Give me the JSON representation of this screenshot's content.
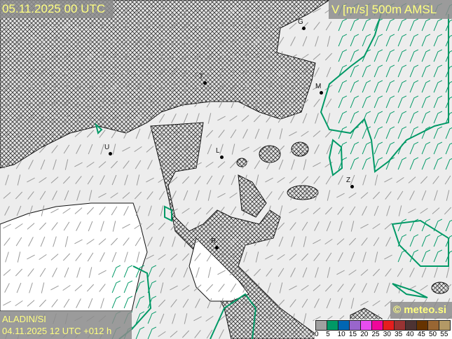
{
  "header": {
    "valid_time": "05.11.2025 00 UTC",
    "parameter": "V [m/s] 500m AMSL"
  },
  "footer": {
    "model": "ALADIN/SI",
    "run": "04.11.2025 12 UTC +012 h",
    "copyright": "© meteo.si"
  },
  "legend": {
    "labels": [
      "0",
      "5",
      "10",
      "15",
      "20",
      "25",
      "30",
      "35",
      "40",
      "45",
      "50",
      "55"
    ],
    "colors": [
      "#a0a0a0",
      "#009966",
      "#0066b3",
      "#9966cc",
      "#e64df0",
      "#f0069a",
      "#e61e1e",
      "#993333",
      "#4d3333",
      "#663300",
      "#996633",
      "#b39966"
    ]
  },
  "cities": [
    {
      "label": "G"
    },
    {
      "label": "T"
    },
    {
      "label": "M"
    },
    {
      "label": "U"
    },
    {
      "label": "L"
    },
    {
      "label": "Z"
    },
    {
      "label": "R"
    }
  ],
  "contour_color": "#009966"
}
